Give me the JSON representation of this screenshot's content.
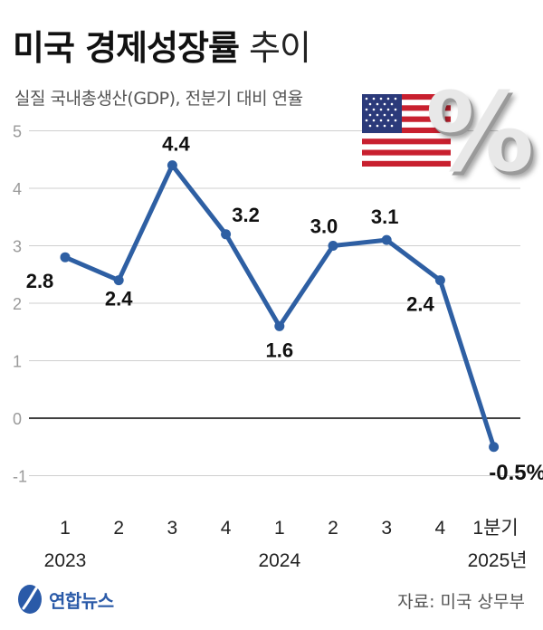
{
  "header": {
    "title_bold": "미국 경제성장률",
    "title_light": "추이",
    "subtitle": "실질 국내총생산(GDP), 전분기 대비 연율"
  },
  "icons": {
    "flag": "us-flag-icon",
    "percent": "percent-icon",
    "logo": "yonhap-logo-icon"
  },
  "footer": {
    "logo_text": "연합뉴스",
    "source": "자료: 미국 상무부"
  },
  "colors": {
    "line": "#2e5fa3",
    "grid": "#cfcfcf",
    "axis_text": "#9a9a9a",
    "zero_line": "#000000"
  },
  "chart_data": {
    "type": "line",
    "categories": [
      "1",
      "2",
      "3",
      "4",
      "1",
      "2",
      "3",
      "4",
      "1분기"
    ],
    "year_labels": [
      "2023",
      "2024",
      "2025년"
    ],
    "values": [
      2.8,
      2.4,
      4.4,
      3.2,
      1.6,
      3.0,
      3.1,
      2.4,
      -0.5
    ],
    "data_labels": [
      "2.8",
      "2.4",
      "4.4",
      "3.2",
      "1.6",
      "3.0",
      "3.1",
      "2.4",
      "-0.5%"
    ],
    "y_ticks": [
      5,
      4,
      3,
      2,
      1,
      0,
      -1
    ],
    "ylim": [
      -1,
      5
    ],
    "grid": true,
    "title": "미국 경제성장률 추이"
  }
}
